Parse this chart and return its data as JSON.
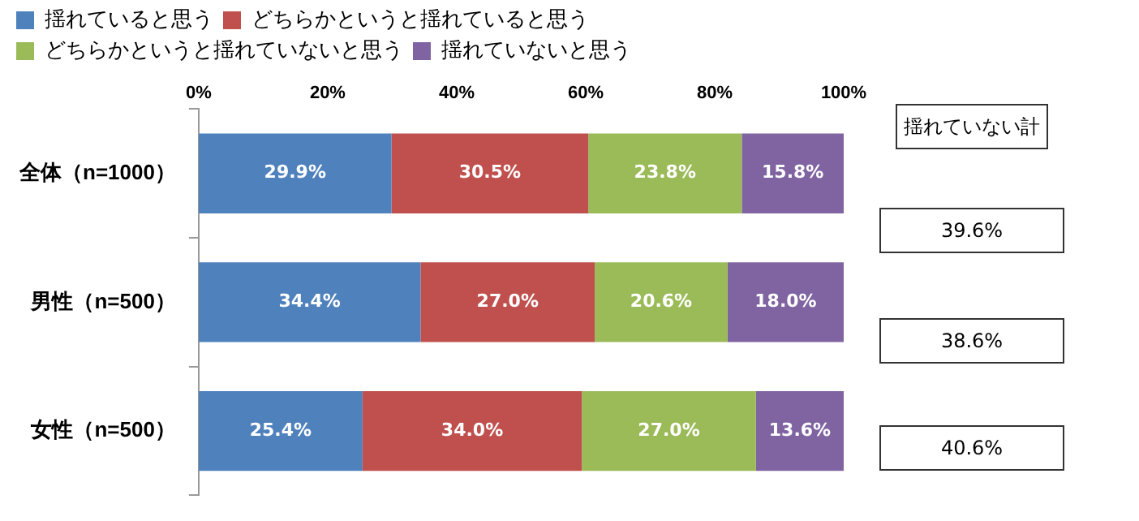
{
  "chart_data": {
    "type": "bar",
    "orientation": "horizontal",
    "stacked": true,
    "categories": [
      "全体（n=1000）",
      "男性（n=500）",
      "女性（n=500）"
    ],
    "series": [
      {
        "name": "揺れていると思う",
        "color": "#4f81bd",
        "values": [
          29.9,
          34.4,
          25.4
        ],
        "value_labels": [
          "29.9%",
          "34.4%",
          "25.4%"
        ]
      },
      {
        "name": "どちらかというと揺れていると思う",
        "color": "#c0504d",
        "values": [
          30.5,
          27.0,
          34.0
        ],
        "value_labels": [
          "30.5%",
          "27.0%",
          "34.0%"
        ]
      },
      {
        "name": "どちらかというと揺れていないと思う",
        "color": "#9bbb59",
        "values": [
          23.8,
          20.6,
          27.0
        ],
        "value_labels": [
          "23.8%",
          "20.6%",
          "27.0%"
        ]
      },
      {
        "name": "揺れていないと思う",
        "color": "#8064a2",
        "values": [
          15.8,
          18.0,
          13.6
        ],
        "value_labels": [
          "15.8%",
          "18.0%",
          "13.6%"
        ]
      }
    ],
    "xlim": [
      0,
      100
    ],
    "xticks": [
      {
        "value": 0,
        "label": "0%"
      },
      {
        "value": 20,
        "label": "20%"
      },
      {
        "value": 40,
        "label": "40%"
      },
      {
        "value": 60,
        "label": "60%"
      },
      {
        "value": 80,
        "label": "80%"
      },
      {
        "value": 100,
        "label": "100%"
      }
    ],
    "grid": false,
    "legend": "top",
    "annotations": [
      "揺れていない計",
      "39.6%",
      "38.6%",
      "40.6%"
    ]
  }
}
